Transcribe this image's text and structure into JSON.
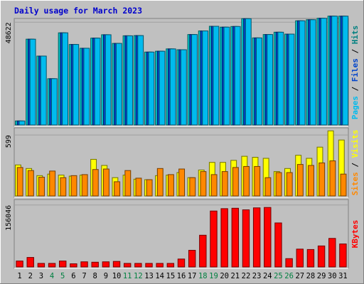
{
  "chart_data": {
    "type": "bar",
    "title": "Daily usage for March 2023",
    "categories": [
      "1",
      "2",
      "3",
      "4",
      "5",
      "6",
      "7",
      "8",
      "9",
      "10",
      "11",
      "12",
      "13",
      "14",
      "15",
      "16",
      "17",
      "18",
      "19",
      "20",
      "21",
      "22",
      "23",
      "24",
      "25",
      "26",
      "27",
      "28",
      "29",
      "30",
      "31"
    ],
    "weekend_days": [
      "4",
      "5",
      "11",
      "12",
      "18",
      "19",
      "25",
      "26"
    ],
    "panels": [
      {
        "id": "hits",
        "scale_label": "48622",
        "scale_value": 48622,
        "ymax": 50400,
        "right_label": [
          {
            "text": "Pages",
            "color": "#00bbee"
          },
          {
            "text": " / ",
            "color": "#000000"
          },
          {
            "text": "Files",
            "color": "#0044cc"
          },
          {
            "text": " / ",
            "color": "#000000"
          },
          {
            "text": "Hits",
            "color": "#008080"
          }
        ],
        "series": [
          {
            "name": "Hits",
            "color": "#00cccc",
            "values": [
              1900,
              40600,
              32600,
              21900,
              43600,
              38100,
              36300,
              41100,
              42700,
              38600,
              42200,
              42300,
              34500,
              34900,
              36000,
              35600,
              42800,
              44500,
              46700,
              46300,
              46600,
              50300,
              41200,
              42800,
              43900,
              43000,
              49300,
              49800,
              50500,
              51500,
              51500
            ]
          },
          {
            "name": "Files",
            "color": "#0044cc",
            "values": [
              1900,
              40600,
              32600,
              21900,
              43600,
              38100,
              36300,
              41100,
              42700,
              38600,
              42200,
              42300,
              34500,
              34900,
              36000,
              35600,
              42800,
              44500,
              46700,
              46300,
              46600,
              50300,
              41200,
              42800,
              43900,
              43000,
              49300,
              49800,
              50500,
              51500,
              51500
            ]
          },
          {
            "name": "Pages",
            "color": "#00bbee",
            "values": [
              1900,
              40600,
              32600,
              21900,
              43600,
              38100,
              36300,
              41100,
              42700,
              38600,
              42200,
              42300,
              34500,
              34900,
              36000,
              35600,
              42800,
              44500,
              46700,
              46300,
              46600,
              50300,
              41200,
              42800,
              43900,
              43000,
              49300,
              49800,
              50500,
              51500,
              51500
            ]
          }
        ]
      },
      {
        "id": "visits",
        "scale_label": "599",
        "scale_value": 599,
        "ymax": 670,
        "right_label": [
          {
            "text": "Sites",
            "color": "#ff8800"
          },
          {
            "text": " / ",
            "color": "#000000"
          },
          {
            "text": "Visits",
            "color": "#ffff00"
          }
        ],
        "series": [
          {
            "name": "Visits",
            "color": "#ffff00",
            "values": [
              305,
              270,
              200,
              215,
              205,
              195,
              205,
              360,
              300,
              180,
              205,
              165,
              160,
              200,
              205,
              230,
              180,
              255,
              330,
              330,
              350,
              390,
              380,
              370,
              240,
              270,
              400,
              370,
              480,
              640,
              550
            ]
          },
          {
            "name": "Sites",
            "color": "#ff8800",
            "values": [
              280,
              250,
              185,
              245,
              180,
              200,
              210,
              260,
              265,
              140,
              250,
              175,
              160,
              270,
              210,
              265,
              180,
              240,
              210,
              240,
              280,
              290,
              290,
              180,
              230,
              230,
              310,
              300,
              325,
              345,
              215
            ]
          }
        ]
      },
      {
        "id": "kbytes",
        "scale_label": "156046",
        "scale_value": 156046,
        "ymax": 170000,
        "right_label": [
          {
            "text": "KBytes",
            "color": "#ff0000"
          }
        ],
        "series": [
          {
            "name": "KBytes",
            "color": "#ff0000",
            "values": [
              15000,
              24000,
              9000,
              9000,
              15000,
              8000,
              13000,
              12000,
              13000,
              14000,
              9000,
              9000,
              9000,
              9000,
              9000,
              20000,
              42000,
              80000,
              141000,
              147000,
              148000,
              144000,
              149000,
              150000,
              111000,
              21000,
              45000,
              44000,
              53000,
              72000,
              58000
            ]
          }
        ]
      }
    ]
  }
}
